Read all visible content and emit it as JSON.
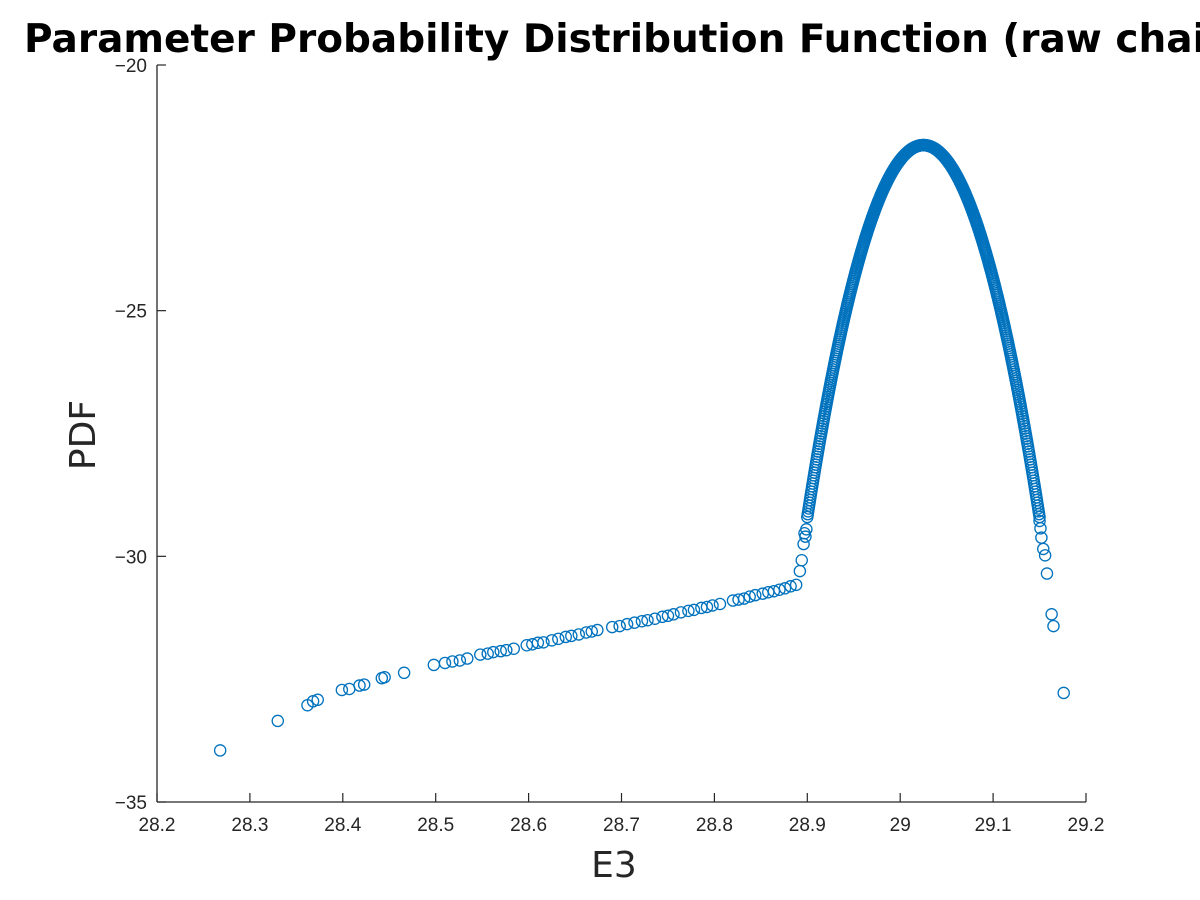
{
  "chart_data": {
    "type": "scatter",
    "title": "Parameter Probability Distribution Function (raw chain",
    "xlabel": "E3",
    "ylabel": "PDF",
    "xlim": [
      28.2,
      29.2
    ],
    "ylim": [
      -35,
      -20
    ],
    "xticks": [
      "28.2",
      "28.3",
      "28.4",
      "28.5",
      "28.6",
      "28.7",
      "28.8",
      "28.9",
      "29",
      "29.1",
      "29.2"
    ],
    "yticks": [
      "-20",
      "-25",
      "-30",
      "-35"
    ],
    "marker": "open-circle",
    "color": "#0072BD",
    "grid": false,
    "series": [
      {
        "points": [
          [
            28.268,
            -33.95
          ],
          [
            28.33,
            -33.35
          ],
          [
            28.362,
            -33.03
          ],
          [
            28.368,
            -32.95
          ],
          [
            28.373,
            -32.92
          ],
          [
            28.399,
            -32.72
          ],
          [
            28.407,
            -32.7
          ],
          [
            28.418,
            -32.63
          ],
          [
            28.423,
            -32.61
          ],
          [
            28.442,
            -32.48
          ],
          [
            28.445,
            -32.46
          ],
          [
            28.466,
            -32.37
          ],
          [
            28.498,
            -32.21
          ],
          [
            28.51,
            -32.17
          ],
          [
            28.518,
            -32.14
          ],
          [
            28.526,
            -32.12
          ],
          [
            28.534,
            -32.08
          ],
          [
            28.548,
            -32.0
          ],
          [
            28.556,
            -31.98
          ],
          [
            28.562,
            -31.95
          ],
          [
            28.57,
            -31.93
          ],
          [
            28.576,
            -31.91
          ],
          [
            28.584,
            -31.88
          ],
          [
            28.598,
            -31.81
          ],
          [
            28.604,
            -31.79
          ],
          [
            28.61,
            -31.76
          ],
          [
            28.616,
            -31.75
          ],
          [
            28.625,
            -31.71
          ],
          [
            28.632,
            -31.68
          ],
          [
            28.64,
            -31.64
          ],
          [
            28.646,
            -31.62
          ],
          [
            28.654,
            -31.59
          ],
          [
            28.662,
            -31.55
          ],
          [
            28.668,
            -31.53
          ],
          [
            28.674,
            -31.5
          ],
          [
            28.69,
            -31.44
          ],
          [
            28.698,
            -31.42
          ],
          [
            28.706,
            -31.38
          ],
          [
            28.714,
            -31.35
          ],
          [
            28.722,
            -31.32
          ],
          [
            28.728,
            -31.3
          ],
          [
            28.736,
            -31.27
          ],
          [
            28.744,
            -31.23
          ],
          [
            28.75,
            -31.21
          ],
          [
            28.756,
            -31.18
          ],
          [
            28.764,
            -31.14
          ],
          [
            28.772,
            -31.11
          ],
          [
            28.778,
            -31.09
          ],
          [
            28.786,
            -31.05
          ],
          [
            28.792,
            -31.03
          ],
          [
            28.798,
            -31.0
          ],
          [
            28.806,
            -30.97
          ],
          [
            28.82,
            -30.9
          ],
          [
            28.826,
            -30.88
          ],
          [
            28.832,
            -30.86
          ],
          [
            28.838,
            -30.82
          ],
          [
            28.844,
            -30.79
          ],
          [
            28.852,
            -30.76
          ],
          [
            28.858,
            -30.73
          ],
          [
            28.864,
            -30.71
          ],
          [
            28.87,
            -30.68
          ],
          [
            28.876,
            -30.65
          ],
          [
            28.882,
            -30.61
          ],
          [
            28.888,
            -30.58
          ],
          [
            28.892,
            -30.3
          ],
          [
            28.894,
            -30.08
          ],
          [
            28.896,
            -29.75
          ],
          [
            28.897,
            -29.53
          ],
          [
            28.898,
            -29.6
          ],
          [
            28.899,
            -29.45
          ]
        ],
        "peak": {
          "x0": 28.9,
          "x_peak": 29.025,
          "x1": 29.15,
          "y_peak": -21.63,
          "y_ends": -29.2
        },
        "right_tail": [
          [
            29.15,
            -29.28
          ],
          [
            29.151,
            -29.43
          ],
          [
            29.152,
            -29.62
          ],
          [
            29.154,
            -29.85
          ],
          [
            29.156,
            -29.98
          ],
          [
            29.158,
            -30.35
          ],
          [
            29.163,
            -31.18
          ],
          [
            29.165,
            -31.42
          ],
          [
            29.176,
            -32.78
          ]
        ]
      }
    ]
  }
}
